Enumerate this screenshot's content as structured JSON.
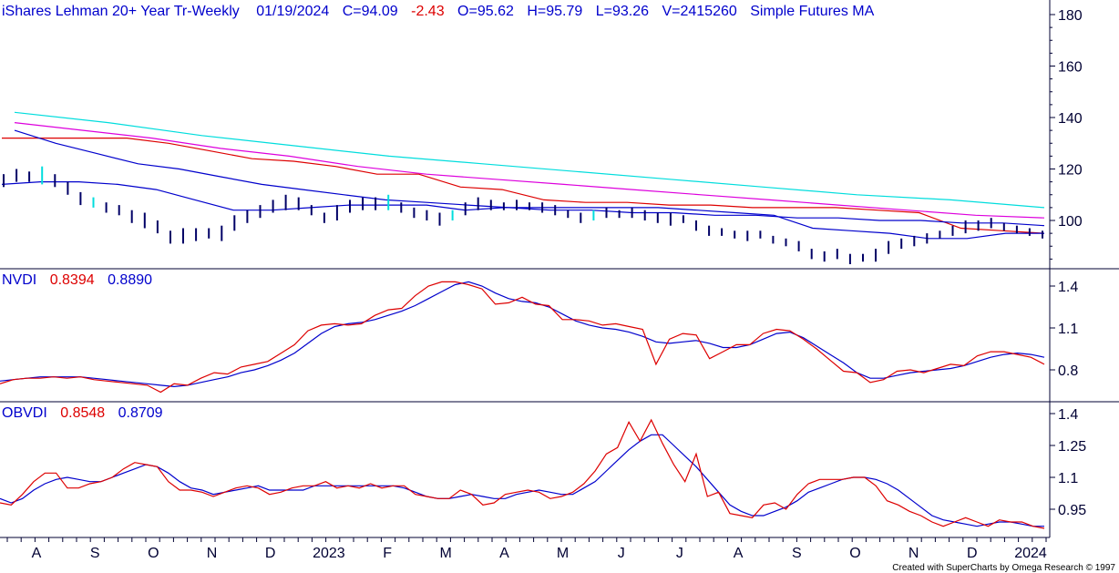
{
  "header": {
    "symbol": "iShares Lehman 20+ Year Tr-Weekly",
    "date": "01/19/2024",
    "close": "C=94.09",
    "change": "-2.43",
    "open": "O=95.62",
    "high": "H=95.79",
    "low": "L=93.26",
    "volume": "V=2415260",
    "study": "Simple Futures MA"
  },
  "panels": {
    "nvdi": {
      "label": "NVDI",
      "value1": "0.8394",
      "value2": "0.8890"
    },
    "obvdi": {
      "label": "OBVDI",
      "value1": "0.8548",
      "value2": "0.8709"
    }
  },
  "credit": "Created with SuperCharts by Omega Research © 1997",
  "colors": {
    "red": "#dd0000",
    "blue": "#0000cc",
    "magenta": "#dd00dd",
    "cyan": "#00dddd",
    "axis": "#000033"
  },
  "chart_data": [
    {
      "type": "bar",
      "subtype": "ohlc",
      "panel": "price",
      "yticks": [
        "180",
        "160",
        "140",
        "120",
        "100"
      ],
      "ylim": [
        82,
        184
      ],
      "x_labels": [
        "A",
        "S",
        "O",
        "N",
        "D",
        "2023",
        "F",
        "M",
        "A",
        "M",
        "J",
        "J",
        "A",
        "S",
        "O",
        "N",
        "D",
        "2024"
      ],
      "bars": [
        {
          "h": 118,
          "l": 113
        },
        {
          "h": 120,
          "l": 115
        },
        {
          "h": 119,
          "l": 115
        },
        {
          "h": 121,
          "l": 114
        },
        {
          "h": 118,
          "l": 113
        },
        {
          "h": 115,
          "l": 110
        },
        {
          "h": 111,
          "l": 106
        },
        {
          "h": 109,
          "l": 105
        },
        {
          "h": 107,
          "l": 103
        },
        {
          "h": 106,
          "l": 102
        },
        {
          "h": 104,
          "l": 99
        },
        {
          "h": 103,
          "l": 97
        },
        {
          "h": 100,
          "l": 95
        },
        {
          "h": 96,
          "l": 91
        },
        {
          "h": 97,
          "l": 91
        },
        {
          "h": 97,
          "l": 92
        },
        {
          "h": 97,
          "l": 93
        },
        {
          "h": 98,
          "l": 92
        },
        {
          "h": 102,
          "l": 96
        },
        {
          "h": 104,
          "l": 99
        },
        {
          "h": 106,
          "l": 101
        },
        {
          "h": 108,
          "l": 103
        },
        {
          "h": 110,
          "l": 104
        },
        {
          "h": 109,
          "l": 104
        },
        {
          "h": 106,
          "l": 102
        },
        {
          "h": 103,
          "l": 99
        },
        {
          "h": 106,
          "l": 100
        },
        {
          "h": 108,
          "l": 103
        },
        {
          "h": 109,
          "l": 104
        },
        {
          "h": 109,
          "l": 104
        },
        {
          "h": 110,
          "l": 104
        },
        {
          "h": 107,
          "l": 103
        },
        {
          "h": 105,
          "l": 101
        },
        {
          "h": 104,
          "l": 100
        },
        {
          "h": 103,
          "l": 98
        },
        {
          "h": 104,
          "l": 100
        },
        {
          "h": 107,
          "l": 102
        },
        {
          "h": 109,
          "l": 104
        },
        {
          "h": 108,
          "l": 104
        },
        {
          "h": 107,
          "l": 104
        },
        {
          "h": 108,
          "l": 104
        },
        {
          "h": 107,
          "l": 104
        },
        {
          "h": 107,
          "l": 103
        },
        {
          "h": 106,
          "l": 102
        },
        {
          "h": 104,
          "l": 101
        },
        {
          "h": 103,
          "l": 99
        },
        {
          "h": 104,
          "l": 100
        },
        {
          "h": 105,
          "l": 101
        },
        {
          "h": 104,
          "l": 101
        },
        {
          "h": 105,
          "l": 101
        },
        {
          "h": 104,
          "l": 100
        },
        {
          "h": 103,
          "l": 99
        },
        {
          "h": 103,
          "l": 98
        },
        {
          "h": 102,
          "l": 99
        },
        {
          "h": 100,
          "l": 96
        },
        {
          "h": 98,
          "l": 94
        },
        {
          "h": 97,
          "l": 94
        },
        {
          "h": 96,
          "l": 93
        },
        {
          "h": 96,
          "l": 92
        },
        {
          "h": 96,
          "l": 93
        },
        {
          "h": 94,
          "l": 91
        },
        {
          "h": 93,
          "l": 90
        },
        {
          "h": 92,
          "l": 88
        },
        {
          "h": 89,
          "l": 85
        },
        {
          "h": 88,
          "l": 84
        },
        {
          "h": 89,
          "l": 85
        },
        {
          "h": 87,
          "l": 83
        },
        {
          "h": 87,
          "l": 84
        },
        {
          "h": 89,
          "l": 84
        },
        {
          "h": 92,
          "l": 87
        },
        {
          "h": 93,
          "l": 89
        },
        {
          "h": 94,
          "l": 90
        },
        {
          "h": 95,
          "l": 91
        },
        {
          "h": 96,
          "l": 93
        },
        {
          "h": 98,
          "l": 94
        },
        {
          "h": 100,
          "l": 95
        },
        {
          "h": 100,
          "l": 96
        },
        {
          "h": 101,
          "l": 97
        },
        {
          "h": 99,
          "l": 96
        },
        {
          "h": 98,
          "l": 95
        },
        {
          "h": 97,
          "l": 94
        },
        {
          "h": 96,
          "l": 93
        }
      ],
      "ma_red": [
        132,
        132,
        132,
        132,
        130,
        127,
        124,
        123,
        121,
        118,
        118,
        113,
        112,
        108,
        107,
        107,
        106,
        106,
        105,
        105,
        105,
        104,
        103,
        97,
        96,
        95
      ],
      "ma_blue_slow": [
        135,
        130,
        126,
        122,
        120,
        117,
        114,
        112,
        110,
        108,
        107,
        106,
        105,
        104,
        104,
        103,
        103,
        102,
        102,
        101,
        101,
        100,
        100,
        99,
        99,
        98
      ],
      "ma_magenta": [
        138,
        135,
        132,
        128,
        125,
        121,
        118,
        116,
        114,
        112,
        110,
        108,
        106,
        104,
        102,
        101
      ],
      "ma_cyan": [
        142,
        138,
        133,
        129,
        125,
        122,
        119,
        116,
        113,
        110,
        108,
        105
      ],
      "ma_blue_fast": [
        114,
        115,
        115,
        114,
        112,
        108,
        104,
        104,
        105,
        106,
        106,
        106,
        104,
        105,
        105,
        105,
        105,
        105,
        104,
        103,
        102,
        97,
        96,
        95,
        93,
        93,
        95,
        95
      ]
    },
    {
      "type": "line",
      "panel": "nvdi",
      "yticks": [
        "1.4",
        "1.1",
        "0.8"
      ],
      "ylim": [
        0.63,
        1.5
      ],
      "series": [
        {
          "name": "0.8394",
          "values": [
            0.7,
            0.73,
            0.74,
            0.74,
            0.75,
            0.74,
            0.75,
            0.73,
            0.72,
            0.71,
            0.7,
            0.69,
            0.64,
            0.7,
            0.69,
            0.74,
            0.78,
            0.77,
            0.82,
            0.84,
            0.86,
            0.92,
            0.98,
            1.08,
            1.12,
            1.13,
            1.12,
            1.13,
            1.19,
            1.23,
            1.24,
            1.33,
            1.4,
            1.43,
            1.43,
            1.41,
            1.38,
            1.27,
            1.28,
            1.32,
            1.27,
            1.26,
            1.16,
            1.16,
            1.15,
            1.12,
            1.13,
            1.11,
            1.09,
            0.84,
            1.02,
            1.06,
            1.05,
            0.88,
            0.93,
            0.98,
            0.98,
            1.06,
            1.09,
            1.08,
            1.02,
            0.95,
            0.87,
            0.79,
            0.78,
            0.71,
            0.73,
            0.79,
            0.8,
            0.78,
            0.81,
            0.84,
            0.83,
            0.9,
            0.93,
            0.93,
            0.91,
            0.89,
            0.84
          ]
        },
        {
          "name": "0.8890",
          "values": [
            0.72,
            0.73,
            0.74,
            0.75,
            0.75,
            0.75,
            0.75,
            0.74,
            0.73,
            0.72,
            0.71,
            0.7,
            0.69,
            0.68,
            0.69,
            0.71,
            0.73,
            0.75,
            0.78,
            0.8,
            0.83,
            0.87,
            0.92,
            0.99,
            1.06,
            1.11,
            1.13,
            1.14,
            1.16,
            1.19,
            1.22,
            1.26,
            1.31,
            1.36,
            1.41,
            1.43,
            1.4,
            1.35,
            1.31,
            1.29,
            1.28,
            1.25,
            1.2,
            1.15,
            1.12,
            1.1,
            1.09,
            1.07,
            1.04,
            1.0,
            0.99,
            1.0,
            1.01,
            0.99,
            0.96,
            0.96,
            0.98,
            1.02,
            1.06,
            1.07,
            1.03,
            0.97,
            0.91,
            0.85,
            0.78,
            0.74,
            0.74,
            0.76,
            0.78,
            0.79,
            0.8,
            0.81,
            0.83,
            0.86,
            0.89,
            0.91,
            0.92,
            0.91,
            0.89
          ]
        }
      ]
    },
    {
      "type": "line",
      "panel": "obvdi",
      "yticks": [
        "1.4",
        "1.25",
        "1.1",
        "0.95"
      ],
      "ylim": [
        0.85,
        1.47
      ],
      "series": [
        {
          "name": "0.8548",
          "values": [
            0.98,
            0.97,
            1.02,
            1.08,
            1.12,
            1.12,
            1.05,
            1.05,
            1.07,
            1.08,
            1.1,
            1.14,
            1.17,
            1.16,
            1.15,
            1.08,
            1.04,
            1.04,
            1.03,
            1.01,
            1.03,
            1.05,
            1.06,
            1.05,
            1.02,
            1.03,
            1.05,
            1.06,
            1.06,
            1.08,
            1.05,
            1.06,
            1.05,
            1.07,
            1.05,
            1.06,
            1.06,
            1.02,
            1.01,
            1.0,
            1.0,
            1.04,
            1.02,
            0.97,
            0.98,
            1.02,
            1.03,
            1.04,
            1.03,
            1.0,
            1.01,
            1.03,
            1.07,
            1.13,
            1.21,
            1.24,
            1.36,
            1.27,
            1.37,
            1.26,
            1.16,
            1.08,
            1.21,
            1.01,
            1.03,
            0.93,
            0.92,
            0.91,
            0.97,
            0.98,
            0.95,
            1.02,
            1.07,
            1.09,
            1.09,
            1.09,
            1.1,
            1.1,
            1.06,
            0.99,
            0.97,
            0.94,
            0.92,
            0.89,
            0.87,
            0.89,
            0.91,
            0.89,
            0.87,
            0.9,
            0.89,
            0.89,
            0.87,
            0.86
          ]
        },
        {
          "name": "0.8709",
          "values": [
            1.0,
            0.98,
            1.0,
            1.04,
            1.07,
            1.09,
            1.1,
            1.09,
            1.08,
            1.08,
            1.1,
            1.12,
            1.14,
            1.16,
            1.15,
            1.12,
            1.08,
            1.05,
            1.04,
            1.02,
            1.03,
            1.04,
            1.05,
            1.06,
            1.04,
            1.04,
            1.04,
            1.04,
            1.06,
            1.06,
            1.06,
            1.06,
            1.06,
            1.06,
            1.06,
            1.06,
            1.05,
            1.03,
            1.01,
            1.0,
            1.0,
            1.01,
            1.02,
            1.01,
            1.0,
            1.0,
            1.02,
            1.03,
            1.04,
            1.03,
            1.02,
            1.02,
            1.05,
            1.08,
            1.13,
            1.18,
            1.23,
            1.27,
            1.3,
            1.3,
            1.25,
            1.2,
            1.15,
            1.09,
            1.03,
            0.97,
            0.94,
            0.92,
            0.92,
            0.94,
            0.96,
            0.99,
            1.03,
            1.05,
            1.07,
            1.09,
            1.1,
            1.1,
            1.09,
            1.07,
            1.04,
            1.0,
            0.96,
            0.92,
            0.9,
            0.89,
            0.88,
            0.87,
            0.88,
            0.89,
            0.89,
            0.88,
            0.87,
            0.87
          ]
        }
      ]
    }
  ]
}
